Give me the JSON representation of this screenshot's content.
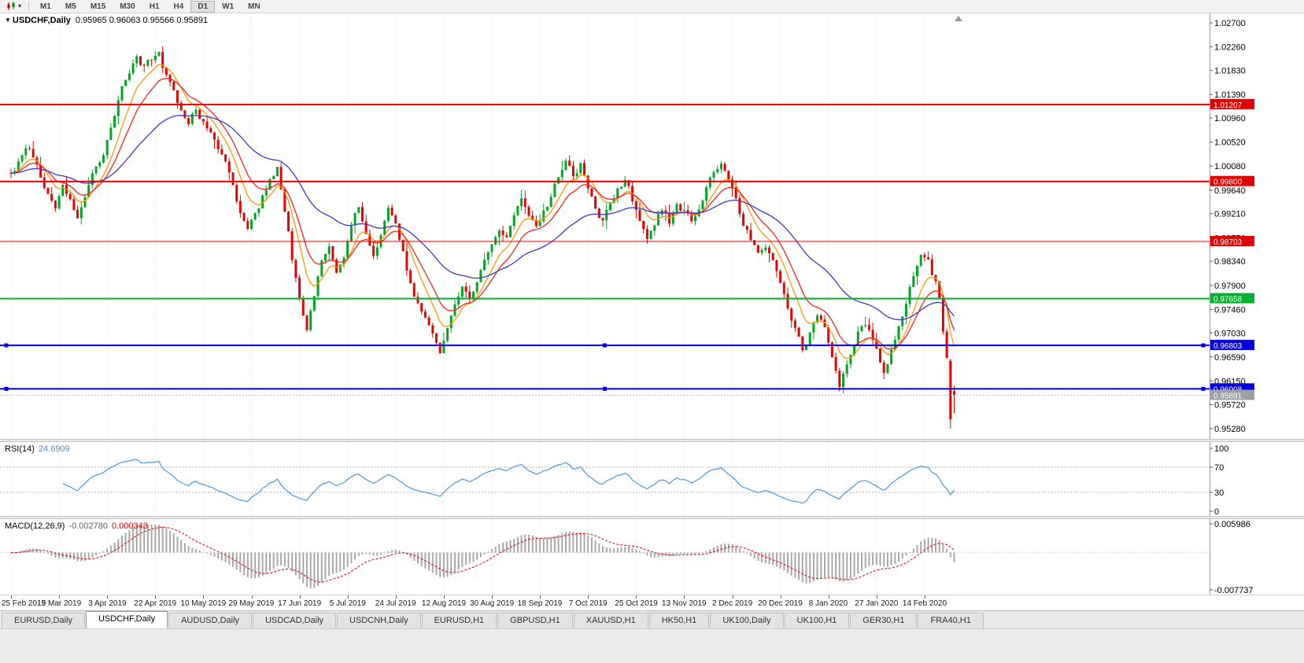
{
  "toolbar": {
    "timeframes": [
      "M1",
      "M5",
      "M15",
      "M30",
      "H1",
      "H4",
      "D1",
      "W1",
      "MN"
    ],
    "active_timeframe": "D1"
  },
  "chart": {
    "title_symbol": "USDCHF,Daily",
    "ohlc_text": "0.95965 0.96063 0.95566 0.95891"
  },
  "chart_data": {
    "type": "candlestick",
    "symbol": "USDCHF",
    "timeframe": "Daily",
    "ohlc_current": {
      "open": 0.95965,
      "high": 0.96063,
      "low": 0.95566,
      "close": 0.95891
    },
    "price_axis": {
      "plot_max": 1.02873,
      "plot_min": 0.95093,
      "ticks": [
        "1.02700",
        "1.02260",
        "1.01830",
        "1.01390",
        "1.00960",
        "1.00520",
        "1.00080",
        "0.99640",
        "0.99210",
        "0.98770",
        "0.98340",
        "0.97900",
        "0.97460",
        "0.97030",
        "0.96590",
        "0.96150",
        "0.95720",
        "0.95280"
      ]
    },
    "x_axis": {
      "labels": [
        {
          "label": "25 Feb 2019",
          "i": 0
        },
        {
          "label": "15 Mar 2019",
          "i": 13
        },
        {
          "label": "3 Apr 2019",
          "i": 26
        },
        {
          "label": "22 Apr 2019",
          "i": 39
        },
        {
          "label": "10 May 2019",
          "i": 52
        },
        {
          "label": "29 May 2019",
          "i": 65
        },
        {
          "label": "17 Jun 2019",
          "i": 78
        },
        {
          "label": "5 Jul 2019",
          "i": 91
        },
        {
          "label": "24 Jul 2019",
          "i": 104
        },
        {
          "label": "12 Aug 2019",
          "i": 117
        },
        {
          "label": "30 Aug 2019",
          "i": 130
        },
        {
          "label": "18 Sep 2019",
          "i": 143
        },
        {
          "label": "7 Oct 2019",
          "i": 156
        },
        {
          "label": "25 Oct 2019",
          "i": 169
        },
        {
          "label": "13 Nov 2019",
          "i": 182
        },
        {
          "label": "2 Dec 2019",
          "i": 195
        },
        {
          "label": "20 Dec 2019",
          "i": 208
        },
        {
          "label": "8 Jan 2020",
          "i": 221
        },
        {
          "label": "27 Jan 2020",
          "i": 234
        },
        {
          "label": "14 Feb 2020",
          "i": 247
        }
      ]
    },
    "levels": [
      {
        "value": 1.01207,
        "label": "1.01207",
        "color": "#e00000",
        "width": 2,
        "handles": false
      },
      {
        "value": 0.998,
        "label": "0.99800",
        "color": "#e00000",
        "width": 2,
        "handles": false
      },
      {
        "value": 0.98703,
        "label": "0.98703",
        "color": "#e00000",
        "width": 1,
        "handles": false
      },
      {
        "value": 0.97658,
        "label": "0.97658",
        "color": "#00b22d",
        "width": 2,
        "handles": false
      },
      {
        "value": 0.96803,
        "label": "0.96803",
        "color": "#0000d8",
        "width": 2,
        "handles": true
      },
      {
        "value": 0.96008,
        "label": "0.96008",
        "color": "#0000d8",
        "width": 2,
        "handles": true
      }
    ],
    "current_price": {
      "value": 0.95891,
      "label": "0.95891",
      "line_color": "#b8b8b8",
      "tag_color": "#9aa0a6"
    },
    "candles": {
      "count": 256,
      "bull_color": "#00a524",
      "bear_color": "#e00505",
      "seed": 11,
      "noise": 0.0009,
      "anchors": [
        [
          0,
          0.9995
        ],
        [
          2,
          1.0015
        ],
        [
          4,
          1.0048
        ],
        [
          6,
          1.003
        ],
        [
          8,
          0.9992
        ],
        [
          10,
          0.9962
        ],
        [
          12,
          0.9935
        ],
        [
          14,
          0.9982
        ],
        [
          16,
          0.9945
        ],
        [
          18,
          0.9922
        ],
        [
          20,
          0.9952
        ],
        [
          22,
          0.9992
        ],
        [
          24,
          1.0012
        ],
        [
          26,
          1.0052
        ],
        [
          28,
          1.0098
        ],
        [
          30,
          1.0143
        ],
        [
          32,
          1.0178
        ],
        [
          34,
          1.0212
        ],
        [
          36,
          1.0192
        ],
        [
          38,
          1.0205
        ],
        [
          40,
          1.0212
        ],
        [
          42,
          1.0172
        ],
        [
          44,
          1.0135
        ],
        [
          46,
          1.0108
        ],
        [
          48,
          1.0088
        ],
        [
          50,
          1.0108
        ],
        [
          52,
          1.0088
        ],
        [
          54,
          1.0062
        ],
        [
          56,
          1.0042
        ],
        [
          58,
          1.0012
        ],
        [
          60,
          0.9978
        ],
        [
          62,
          0.9922
        ],
        [
          64,
          0.9892
        ],
        [
          66,
          0.9922
        ],
        [
          68,
          0.9952
        ],
        [
          70,
          0.9978
        ],
        [
          72,
          1.0002
        ],
        [
          74,
          0.9932
        ],
        [
          76,
          0.9842
        ],
        [
          78,
          0.9762
        ],
        [
          80,
          0.9706
        ],
        [
          82,
          0.9772
        ],
        [
          84,
          0.9832
        ],
        [
          86,
          0.9866
        ],
        [
          88,
          0.9822
        ],
        [
          90,
          0.9852
        ],
        [
          92,
          0.9896
        ],
        [
          94,
          0.9932
        ],
        [
          96,
          0.9876
        ],
        [
          98,
          0.9846
        ],
        [
          100,
          0.9886
        ],
        [
          102,
          0.9926
        ],
        [
          104,
          0.9906
        ],
        [
          106,
          0.9852
        ],
        [
          108,
          0.9796
        ],
        [
          110,
          0.9756
        ],
        [
          112,
          0.9726
        ],
        [
          114,
          0.97
        ],
        [
          116,
          0.9672
        ],
        [
          118,
          0.9716
        ],
        [
          120,
          0.9756
        ],
        [
          122,
          0.9786
        ],
        [
          124,
          0.9772
        ],
        [
          126,
          0.9802
        ],
        [
          128,
          0.9836
        ],
        [
          130,
          0.9866
        ],
        [
          132,
          0.9896
        ],
        [
          134,
          0.9882
        ],
        [
          136,
          0.9916
        ],
        [
          138,
          0.9946
        ],
        [
          140,
          0.9922
        ],
        [
          142,
          0.9896
        ],
        [
          144,
          0.9926
        ],
        [
          146,
          0.9952
        ],
        [
          148,
          0.9986
        ],
        [
          150,
          1.0012
        ],
        [
          152,
          0.9992
        ],
        [
          154,
          1.0012
        ],
        [
          156,
          0.9976
        ],
        [
          158,
          0.9936
        ],
        [
          160,
          0.9906
        ],
        [
          162,
          0.9942
        ],
        [
          164,
          0.9972
        ],
        [
          166,
          0.9986
        ],
        [
          168,
          0.9948
        ],
        [
          170,
          0.9908
        ],
        [
          172,
          0.9872
        ],
        [
          174,
          0.9892
        ],
        [
          176,
          0.9926
        ],
        [
          178,
          0.9906
        ],
        [
          180,
          0.9936
        ],
        [
          182,
          0.9926
        ],
        [
          184,
          0.9902
        ],
        [
          186,
          0.9932
        ],
        [
          188,
          0.9972
        ],
        [
          190,
          1.0002
        ],
        [
          192,
          1.0016
        ],
        [
          194,
          0.9992
        ],
        [
          196,
          0.9952
        ],
        [
          198,
          0.9906
        ],
        [
          200,
          0.9872
        ],
        [
          202,
          0.9856
        ],
        [
          204,
          0.9866
        ],
        [
          206,
          0.9836
        ],
        [
          208,
          0.9786
        ],
        [
          210,
          0.9742
        ],
        [
          212,
          0.9706
        ],
        [
          214,
          0.9666
        ],
        [
          216,
          0.9702
        ],
        [
          218,
          0.9732
        ],
        [
          220,
          0.9706
        ],
        [
          222,
          0.9662
        ],
        [
          224,
          0.9612
        ],
        [
          226,
          0.9652
        ],
        [
          228,
          0.9692
        ],
        [
          230,
          0.9722
        ],
        [
          232,
          0.9706
        ],
        [
          234,
          0.9666
        ],
        [
          236,
          0.9632
        ],
        [
          238,
          0.9668
        ],
        [
          240,
          0.9708
        ],
        [
          242,
          0.9756
        ],
        [
          244,
          0.9806
        ],
        [
          246,
          0.9836
        ],
        [
          248,
          0.9826
        ],
        [
          250,
          0.9792
        ],
        [
          251,
          0.9758
        ],
        [
          252,
          0.9706
        ],
        [
          253,
          0.9652
        ],
        [
          254,
          0.96
        ],
        [
          255,
          0.9589
        ]
      ],
      "tail": [
        {
          "o": 0.9652,
          "h": 0.9656,
          "l": 0.9528,
          "c": 0.9545
        },
        {
          "o": 0.95965,
          "h": 0.96063,
          "l": 0.95566,
          "c": 0.95891
        }
      ]
    },
    "moving_averages": [
      {
        "name": "fast-ma",
        "period": 8,
        "color": "#ff9900"
      },
      {
        "name": "medium-ma",
        "period": 14,
        "color": "#ff2020"
      },
      {
        "name": "slow-ma",
        "period": 40,
        "color": "#3b3bc0"
      }
    ],
    "rsi": {
      "name": "RSI(14)",
      "value": "24.6909",
      "period": 14,
      "color": "#3e8fd8",
      "levels": [
        70,
        30
      ],
      "axis_ticks": [
        "100",
        "70",
        "30",
        "0"
      ]
    },
    "macd": {
      "name": "MACD(12,26,9)",
      "value_main": "-0.002780",
      "value_signal": "0.000343",
      "fast": 12,
      "slow": 26,
      "signal": 9,
      "hist_color": "#a8a8a8",
      "signal_color": "#e00000",
      "axis_max": "0.005986",
      "axis_min": "-0.007737"
    }
  },
  "tabs": {
    "items": [
      "EURUSD,Daily",
      "USDCHF,Daily",
      "AUDUSD,Daily",
      "USDCAD,Daily",
      "USDCNH,Daily",
      "EURUSD,H1",
      "GBPUSD,H1",
      "XAUUSD,H1",
      "HK50,H1",
      "UK100,Daily",
      "UK100,H1",
      "GER30,H1",
      "FRA40,H1"
    ],
    "active_index": 1
  }
}
